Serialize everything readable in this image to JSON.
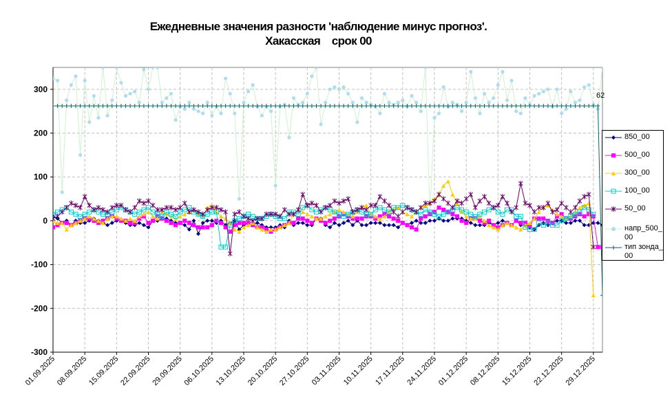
{
  "chart_data": {
    "type": "line",
    "title_line1": "Ежедневные значения разности 'наблюдение минус прогноз'.",
    "title_line2": "Хакасская    срок 00",
    "x_tick_labels": [
      "01.09.2025",
      "08.09.2025",
      "15.09.2025",
      "22.09.2025",
      "29.09.2025",
      "06.10.2025",
      "13.10.2025",
      "20.10.2025",
      "27.10.2025",
      "03.11.2025",
      "10.11.2025",
      "17.11.2025",
      "24.11.2025",
      "01.12.2025",
      "08.12.2025",
      "15.12.2025",
      "22.12.2025",
      "29.12.2025"
    ],
    "days": 122,
    "ylim": [
      -300,
      350
    ],
    "y_ticks": [
      -300,
      -200,
      -100,
      0,
      100,
      200,
      300
    ],
    "grid": true,
    "legend_position": "right",
    "annotation": "62",
    "series": [
      {
        "name": "850_00",
        "color": "#000080",
        "marker": "diamond",
        "values": [
          10,
          5,
          -5,
          0,
          -10,
          0,
          -5,
          -5,
          0,
          5,
          0,
          -5,
          -10,
          -5,
          0,
          0,
          -5,
          -10,
          -10,
          -5,
          -10,
          -15,
          0,
          0,
          5,
          5,
          0,
          -5,
          -5,
          -10,
          -20,
          0,
          -30,
          -5,
          0,
          0,
          -5,
          0,
          -10,
          -5,
          0,
          -20,
          -10,
          -5,
          -10,
          -5,
          -10,
          -15,
          -15,
          -15,
          -10,
          -15,
          0,
          -10,
          -5,
          -5,
          -10,
          -10,
          5,
          5,
          -10,
          -15,
          -5,
          -10,
          -5,
          0,
          -10,
          0,
          -10,
          -10,
          -5,
          -5,
          -5,
          -10,
          -10,
          -10,
          -15,
          -5,
          -10,
          -5,
          0,
          -5,
          -5,
          0,
          0,
          5,
          0,
          0,
          5,
          5,
          5,
          0,
          -5,
          -10,
          -10,
          -10,
          -5,
          -10,
          -5,
          0,
          -5,
          -10,
          0,
          -10,
          -10,
          -15,
          -20,
          -10,
          -5,
          -10,
          -5,
          0,
          0,
          -5,
          -5,
          0,
          0,
          -10,
          -10,
          -5,
          -5,
          -10
        ]
      },
      {
        "name": "500_00",
        "color": "#ff00ff",
        "marker": "square",
        "values": [
          -15,
          -10,
          -5,
          -5,
          -10,
          -5,
          0,
          5,
          5,
          0,
          -5,
          0,
          5,
          10,
          5,
          0,
          0,
          -5,
          -5,
          5,
          10,
          -5,
          0,
          10,
          5,
          0,
          -5,
          -10,
          -5,
          0,
          -5,
          -10,
          -15,
          -15,
          -15,
          -10,
          0,
          -5,
          -15,
          -25,
          -10,
          -5,
          -5,
          -5,
          -10,
          -15,
          -15,
          -20,
          -25,
          -20,
          -15,
          -10,
          -5,
          -5,
          5,
          5,
          0,
          -5,
          5,
          0,
          -5,
          0,
          5,
          10,
          15,
          10,
          5,
          5,
          5,
          10,
          10,
          5,
          10,
          15,
          10,
          5,
          0,
          -5,
          -10,
          -15,
          -20,
          5,
          10,
          15,
          20,
          30,
          25,
          20,
          15,
          10,
          0,
          -5,
          5,
          5,
          0,
          -5,
          0,
          -10,
          -15,
          -10,
          -5,
          -10,
          0,
          -5,
          -5,
          -10,
          5,
          5,
          5,
          0,
          -5,
          10,
          15,
          5,
          5,
          10,
          15,
          10,
          15,
          10,
          -60,
          -60
        ]
      },
      {
        "name": "300_00",
        "color": "#ffcc00",
        "marker": "triangle",
        "values": [
          0,
          -5,
          -5,
          -20,
          -10,
          -5,
          0,
          5,
          10,
          5,
          0,
          -5,
          5,
          10,
          10,
          5,
          0,
          5,
          0,
          10,
          15,
          20,
          10,
          5,
          20,
          15,
          10,
          5,
          10,
          15,
          20,
          25,
          15,
          10,
          30,
          35,
          20,
          10,
          5,
          -5,
          -20,
          -25,
          -15,
          -10,
          -5,
          -15,
          -20,
          -25,
          -20,
          -20,
          -15,
          -10,
          -5,
          15,
          25,
          20,
          15,
          10,
          5,
          5,
          10,
          15,
          20,
          25,
          20,
          15,
          10,
          20,
          30,
          35,
          15,
          10,
          5,
          10,
          20,
          25,
          30,
          20,
          15,
          10,
          20,
          30,
          35,
          40,
          50,
          60,
          80,
          90,
          60,
          40,
          20,
          10,
          5,
          5,
          10,
          0,
          -10,
          -15,
          -20,
          -10,
          -5,
          -10,
          -15,
          -20,
          -10,
          -5,
          5,
          20,
          30,
          35,
          25,
          15,
          10,
          5,
          10,
          20,
          30,
          35,
          40,
          -170
        ]
      },
      {
        "name": "100_00",
        "color": "#00cccc",
        "marker": "square-open",
        "values": [
          15,
          20,
          25,
          30,
          20,
          15,
          10,
          15,
          20,
          25,
          20,
          15,
          15,
          20,
          25,
          30,
          25,
          20,
          15,
          20,
          25,
          30,
          20,
          15,
          10,
          20,
          15,
          10,
          20,
          25,
          30,
          20,
          15,
          10,
          15,
          20,
          20,
          -60,
          -60,
          -10,
          0,
          5,
          10,
          15,
          10,
          5,
          5,
          10,
          15,
          10,
          5,
          5,
          20,
          20,
          15,
          30,
          35,
          25,
          20,
          25,
          30,
          25,
          20,
          15,
          10,
          15,
          20,
          25,
          20,
          15,
          15,
          25,
          30,
          25,
          20,
          30,
          30,
          35,
          30,
          25,
          20,
          15,
          25,
          20,
          15,
          10,
          15,
          20,
          25,
          30,
          25,
          20,
          15,
          10,
          15,
          20,
          25,
          30,
          20,
          15,
          25,
          25,
          10,
          10,
          -15,
          -20,
          -20,
          -5,
          -10,
          -5,
          -10,
          -10,
          0,
          5,
          10,
          15,
          20,
          30,
          25,
          15
        ]
      },
      {
        "name": "50_00",
        "color": "#660066",
        "marker": "star",
        "values": [
          5,
          10,
          20,
          30,
          40,
          35,
          30,
          55,
          35,
          25,
          30,
          25,
          20,
          30,
          35,
          35,
          25,
          20,
          30,
          45,
          40,
          45,
          35,
          25,
          25,
          30,
          30,
          25,
          30,
          40,
          20,
          25,
          20,
          15,
          25,
          30,
          30,
          25,
          20,
          -75,
          15,
          20,
          10,
          5,
          0,
          5,
          5,
          15,
          15,
          15,
          10,
          25,
          15,
          15,
          25,
          60,
          35,
          40,
          35,
          20,
          30,
          35,
          45,
          40,
          45,
          50,
          20,
          25,
          30,
          25,
          35,
          35,
          55,
          45,
          35,
          20,
          10,
          20,
          30,
          25,
          20,
          30,
          40,
          40,
          45,
          60,
          50,
          40,
          30,
          45,
          40,
          50,
          60,
          30,
          45,
          55,
          40,
          30,
          35,
          55,
          40,
          20,
          30,
          85,
          40,
          35,
          20,
          30,
          30,
          40,
          20,
          25,
          40,
          30,
          20,
          30,
          45,
          55,
          60,
          -60
        ]
      },
      {
        "name": "напр_500_00",
        "color": "#b0dcec",
        "marker": "circle",
        "line_color": "#d0f0d0",
        "values": [
          325,
          320,
          65,
          275,
          310,
          330,
          150,
          320,
          225,
          285,
          235,
          350,
          240,
          275,
          350,
          315,
          285,
          290,
          295,
          270,
          345,
          300,
          350,
          350,
          270,
          280,
          290,
          230,
          260,
          255,
          270,
          255,
          250,
          245,
          270,
          240,
          260,
          245,
          325,
          290,
          245,
          50,
          270,
          295,
          310,
          260,
          240,
          260,
          250,
          80,
          260,
          265,
          190,
          280,
          265,
          270,
          290,
          330,
          350,
          220,
          270,
          300,
          305,
          300,
          305,
          290,
          270,
          225,
          280,
          270,
          265,
          260,
          245,
          290,
          270,
          265,
          270,
          275,
          260,
          285,
          270,
          250,
          350,
          20,
          235,
          245,
          305,
          260,
          270,
          265,
          250,
          270,
          340,
          280,
          245,
          290,
          270,
          280,
          310,
          340,
          275,
          320,
          250,
          245,
          280,
          265,
          285,
          290,
          295,
          300,
          260,
          300,
          245,
          255,
          295,
          270,
          275,
          305,
          310,
          265,
          255,
          350
        ]
      },
      {
        "name": "тип зонда_00",
        "color": "#006666",
        "marker": "plus",
        "values": [
          262,
          262,
          262,
          262,
          262,
          262,
          262,
          262,
          262,
          262,
          262,
          262,
          262,
          262,
          262,
          262,
          262,
          262,
          262,
          262,
          262,
          262,
          262,
          262,
          262,
          262,
          262,
          262,
          262,
          262,
          262,
          262,
          262,
          262,
          262,
          262,
          262,
          262,
          262,
          262,
          262,
          262,
          262,
          262,
          262,
          262,
          262,
          262,
          262,
          262,
          262,
          262,
          262,
          262,
          262,
          262,
          262,
          262,
          262,
          262,
          262,
          262,
          262,
          262,
          262,
          262,
          262,
          262,
          262,
          262,
          262,
          262,
          262,
          262,
          262,
          262,
          262,
          262,
          262,
          262,
          262,
          262,
          262,
          262,
          262,
          262,
          262,
          262,
          262,
          262,
          262,
          262,
          262,
          262,
          262,
          262,
          262,
          262,
          262,
          262,
          262,
          262,
          262,
          262,
          262,
          262,
          262,
          262,
          262,
          262,
          262,
          262,
          262,
          262,
          262,
          262,
          262,
          262,
          262,
          262,
          262,
          -170
        ]
      }
    ]
  }
}
